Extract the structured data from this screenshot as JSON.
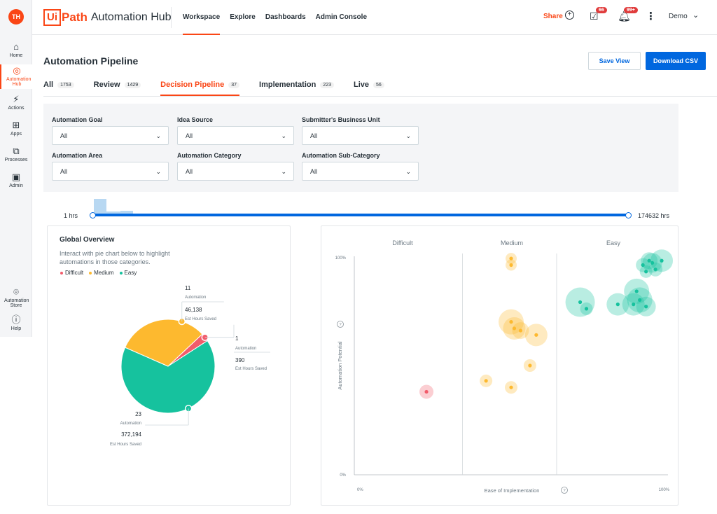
{
  "sidebar": {
    "avatar": "TH",
    "items": [
      {
        "label": "Home",
        "icon": "home-icon"
      },
      {
        "label": "Automation Hub",
        "icon": "automation-hub-icon"
      },
      {
        "label": "Actions",
        "icon": "actions-icon"
      },
      {
        "label": "Apps",
        "icon": "apps-icon"
      },
      {
        "label": "Processes",
        "icon": "processes-icon"
      },
      {
        "label": "Admin",
        "icon": "admin-icon"
      },
      {
        "label": "Automation Store",
        "icon": "store-icon"
      },
      {
        "label": "Help",
        "icon": "help-icon"
      }
    ]
  },
  "header": {
    "logo_box": "Ui",
    "logo_path": "Path",
    "app_name": "Automation Hub",
    "nav": [
      "Workspace",
      "Explore",
      "Dashboards",
      "Admin Console"
    ],
    "share_label": "Share",
    "tasks_badge": "66",
    "notifications_badge": "99+",
    "user_label": "Demo"
  },
  "page": {
    "title": "Automation Pipeline",
    "save_view": "Save View",
    "download_csv": "Download CSV"
  },
  "tabs": [
    {
      "label": "All",
      "count": "1753"
    },
    {
      "label": "Review",
      "count": "1429"
    },
    {
      "label": "Decision Pipeline",
      "count": "37"
    },
    {
      "label": "Implementation",
      "count": "223"
    },
    {
      "label": "Live",
      "count": "56"
    }
  ],
  "filters": [
    {
      "label": "Automation Goal",
      "value": "All"
    },
    {
      "label": "Idea Source",
      "value": "All"
    },
    {
      "label": "Submitter's Business Unit",
      "value": "All"
    },
    {
      "label": "Automation Area",
      "value": "All"
    },
    {
      "label": "Automation Category",
      "value": "All"
    },
    {
      "label": "Automation Sub-Category",
      "value": "All"
    }
  ],
  "slider": {
    "min_label": "1 hrs",
    "max_label": "174632 hrs"
  },
  "overview": {
    "title": "Global Overview",
    "description": "Interact with pie chart below to highlight automations in those categories.",
    "legend": [
      {
        "label": "Difficult",
        "color": "#f25c6b"
      },
      {
        "label": "Medium",
        "color": "#fdb92f"
      },
      {
        "label": "Easy",
        "color": "#16c29e"
      }
    ]
  },
  "chart_data": [
    {
      "type": "pie",
      "slices": [
        {
          "name": "Difficult",
          "value": 1,
          "hours": "390",
          "count_label": "1",
          "unit_label": "Automation",
          "hours_label": "Est Hours Saved",
          "color": "#f25c6b"
        },
        {
          "name": "Medium",
          "value": 11,
          "hours": "46,138",
          "count_label": "11",
          "unit_label": "Automation",
          "hours_label": "Est Hours Saved",
          "color": "#fdb92f"
        },
        {
          "name": "Easy",
          "value": 23,
          "hours": "372,194",
          "count_label": "23",
          "unit_label": "Automation",
          "hours_label": "Est Hours Saved",
          "color": "#16c29e"
        }
      ]
    },
    {
      "type": "scatter",
      "sections": [
        "Difficult",
        "Medium",
        "Easy"
      ],
      "xlabel": "Ease of Implementation",
      "ylabel": "Automation Potential",
      "x_ticks": [
        "0%",
        "100%"
      ],
      "y_ticks": [
        "0%",
        "100%"
      ],
      "xlim": [
        0,
        100
      ],
      "ylim": [
        0,
        100
      ],
      "points": [
        {
          "x": 23,
          "y": 38,
          "r": 10,
          "cat": "Difficult"
        },
        {
          "x": 50,
          "y": 99,
          "r": 8,
          "cat": "Medium"
        },
        {
          "x": 50,
          "y": 96,
          "r": 8,
          "cat": "Medium"
        },
        {
          "x": 50,
          "y": 70,
          "r": 18,
          "cat": "Medium"
        },
        {
          "x": 51,
          "y": 67,
          "r": 16,
          "cat": "Medium"
        },
        {
          "x": 53,
          "y": 66,
          "r": 12,
          "cat": "Medium"
        },
        {
          "x": 58,
          "y": 64,
          "r": 16,
          "cat": "Medium"
        },
        {
          "x": 56,
          "y": 50,
          "r": 9,
          "cat": "Medium"
        },
        {
          "x": 42,
          "y": 43,
          "r": 9,
          "cat": "Medium"
        },
        {
          "x": 50,
          "y": 40,
          "r": 9,
          "cat": "Medium"
        },
        {
          "x": 72,
          "y": 79,
          "r": 21,
          "cat": "Easy"
        },
        {
          "x": 74,
          "y": 76,
          "r": 9,
          "cat": "Easy"
        },
        {
          "x": 84,
          "y": 78,
          "r": 16,
          "cat": "Easy"
        },
        {
          "x": 89,
          "y": 78,
          "r": 16,
          "cat": "Easy"
        },
        {
          "x": 90,
          "y": 84,
          "r": 18,
          "cat": "Easy"
        },
        {
          "x": 91,
          "y": 80,
          "r": 18,
          "cat": "Easy"
        },
        {
          "x": 93,
          "y": 77,
          "r": 14,
          "cat": "Easy"
        },
        {
          "x": 92,
          "y": 96,
          "r": 10,
          "cat": "Easy"
        },
        {
          "x": 94,
          "y": 98,
          "r": 12,
          "cat": "Easy"
        },
        {
          "x": 95,
          "y": 97,
          "r": 14,
          "cat": "Easy"
        },
        {
          "x": 98,
          "y": 98,
          "r": 16,
          "cat": "Easy"
        },
        {
          "x": 96,
          "y": 94,
          "r": 10,
          "cat": "Easy"
        },
        {
          "x": 93,
          "y": 93,
          "r": 9,
          "cat": "Easy"
        }
      ]
    }
  ]
}
